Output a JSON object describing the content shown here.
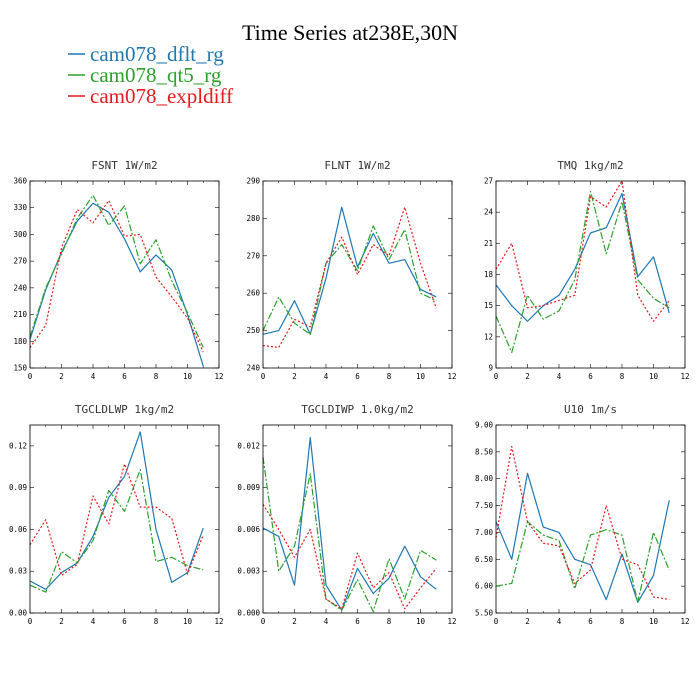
{
  "figure": {
    "title": "Time Series at238E,30N",
    "colors": {
      "dflt": "#1f77b4",
      "qt5": "#2ca02c",
      "expl": "#e41a1c"
    },
    "legend": [
      {
        "name": "cam078_dflt_rg",
        "color": "#1f77b4"
      },
      {
        "name": "cam078_qt5_rg",
        "color": "#2ca02c"
      },
      {
        "name": "cam078_expldiff",
        "color": "#e41a1c"
      }
    ]
  },
  "chart_data": [
    {
      "type": "line",
      "title": "FSNT   1W/m2",
      "x": [
        0,
        1,
        2,
        3,
        4,
        5,
        6,
        7,
        8,
        9,
        10,
        11
      ],
      "xlim": [
        0,
        12
      ],
      "xticks": [
        0,
        2,
        4,
        6,
        8,
        10,
        12
      ],
      "xtick_labels": [
        "0",
        "2",
        "4",
        "6",
        "8",
        "10",
        "12"
      ],
      "ylim": [
        150,
        360
      ],
      "yticks": [
        150,
        180,
        210,
        240,
        270,
        300,
        330,
        360
      ],
      "ytick_labels": [
        "150",
        "180",
        "210",
        "240",
        "270",
        "300",
        "330",
        "360"
      ],
      "series": [
        {
          "name": "cam078_dflt_rg",
          "style": "solid",
          "values": [
            182,
            238,
            280,
            315,
            335,
            325,
            295,
            258,
            277,
            260,
            210,
            152
          ]
        },
        {
          "name": "cam078_qt5_rg",
          "style": "dashed",
          "values": [
            185,
            240,
            278,
            318,
            344,
            310,
            332,
            267,
            294,
            248,
            212,
            173
          ]
        },
        {
          "name": "cam078_expldiff",
          "style": "dotted",
          "values": [
            173,
            198,
            285,
            328,
            313,
            338,
            298,
            300,
            252,
            230,
            206,
            168
          ]
        }
      ]
    },
    {
      "type": "line",
      "title": "FLNT   1W/m2",
      "x": [
        0,
        1,
        2,
        3,
        4,
        5,
        6,
        7,
        8,
        9,
        10,
        11
      ],
      "xlim": [
        0,
        12
      ],
      "xticks": [
        0,
        2,
        4,
        6,
        8,
        10,
        12
      ],
      "xtick_labels": [
        "0",
        "2",
        "4",
        "6",
        "8",
        "10",
        "12"
      ],
      "ylim": [
        240,
        290
      ],
      "yticks": [
        240,
        250,
        260,
        270,
        280,
        290
      ],
      "ytick_labels": [
        "240",
        "250",
        "260",
        "270",
        "280",
        "290"
      ],
      "series": [
        {
          "name": "cam078_dflt_rg",
          "style": "solid",
          "values": [
            249,
            250,
            258,
            249,
            264,
            283,
            267,
            276,
            268,
            269,
            261,
            259
          ]
        },
        {
          "name": "cam078_qt5_rg",
          "style": "dashed",
          "values": [
            250,
            259,
            252,
            249,
            268,
            273,
            266,
            278,
            269,
            277,
            260,
            258
          ]
        },
        {
          "name": "cam078_expldiff",
          "style": "dotted",
          "values": [
            246,
            245.5,
            253,
            251,
            268,
            275,
            265,
            273,
            270,
            283,
            268,
            256
          ]
        }
      ]
    },
    {
      "type": "line",
      "title": "TMQ   1kg/m2",
      "x": [
        0,
        1,
        2,
        3,
        4,
        5,
        6,
        7,
        8,
        9,
        10,
        11
      ],
      "xlim": [
        0,
        12
      ],
      "xticks": [
        0,
        2,
        4,
        6,
        8,
        10,
        12
      ],
      "xtick_labels": [
        "0",
        "2",
        "4",
        "6",
        "8",
        "10",
        "12"
      ],
      "ylim": [
        9,
        27
      ],
      "yticks": [
        9,
        12,
        15,
        18,
        21,
        24,
        27
      ],
      "ytick_labels": [
        "9",
        "12",
        "15",
        "18",
        "21",
        "24",
        "27"
      ],
      "series": [
        {
          "name": "cam078_dflt_rg",
          "style": "solid",
          "values": [
            17,
            15,
            13.5,
            15,
            16,
            18.5,
            22,
            22.5,
            25.8,
            17.8,
            19.7,
            14.3
          ]
        },
        {
          "name": "cam078_qt5_rg",
          "style": "dashed",
          "values": [
            14,
            10.5,
            16,
            13.7,
            14.5,
            17.5,
            26,
            20,
            25,
            17.5,
            15.7,
            14.8
          ]
        },
        {
          "name": "cam078_expldiff",
          "style": "dotted",
          "values": [
            18.5,
            21,
            14.8,
            15,
            15.5,
            16,
            25.5,
            24.5,
            27,
            16,
            13.5,
            15.5
          ]
        }
      ]
    },
    {
      "type": "line",
      "title": "TGCLDLWP   1kg/m2",
      "x": [
        0,
        1,
        2,
        3,
        4,
        5,
        6,
        7,
        8,
        9,
        10,
        11
      ],
      "xlim": [
        0,
        12
      ],
      "xticks": [
        0,
        2,
        4,
        6,
        8,
        10,
        12
      ],
      "xtick_labels": [
        "0",
        "2",
        "4",
        "6",
        "8",
        "10",
        "12"
      ],
      "ylim": [
        0,
        0.135
      ],
      "yticks": [
        0,
        0.03,
        0.06,
        0.09,
        0.12
      ],
      "ytick_labels": [
        "0.00",
        "0.03",
        "0.06",
        "0.09",
        "0.12"
      ],
      "series": [
        {
          "name": "cam078_dflt_rg",
          "style": "solid",
          "values": [
            0.023,
            0.017,
            0.029,
            0.036,
            0.055,
            0.083,
            0.098,
            0.13,
            0.06,
            0.022,
            0.029,
            0.061
          ]
        },
        {
          "name": "cam078_qt5_rg",
          "style": "dashed",
          "values": [
            0.02,
            0.015,
            0.044,
            0.036,
            0.052,
            0.088,
            0.073,
            0.103,
            0.037,
            0.04,
            0.034,
            0.031
          ]
        },
        {
          "name": "cam078_expldiff",
          "style": "dotted",
          "values": [
            0.049,
            0.067,
            0.027,
            0.035,
            0.084,
            0.064,
            0.107,
            0.076,
            0.076,
            0.068,
            0.028,
            0.056
          ]
        }
      ]
    },
    {
      "type": "line",
      "title": "TGCLDIWP   1.0kg/m2",
      "x": [
        0,
        1,
        2,
        3,
        4,
        5,
        6,
        7,
        8,
        9,
        10,
        11
      ],
      "xlim": [
        0,
        12
      ],
      "xticks": [
        0,
        2,
        4,
        6,
        8,
        10,
        12
      ],
      "xtick_labels": [
        "0",
        "2",
        "4",
        "6",
        "8",
        "10",
        "12"
      ],
      "ylim": [
        0,
        0.0135
      ],
      "yticks": [
        0,
        0.003,
        0.006,
        0.009,
        0.012
      ],
      "ytick_labels": [
        "0.000",
        "0.003",
        "0.006",
        "0.009",
        "0.012"
      ],
      "series": [
        {
          "name": "cam078_dflt_rg",
          "style": "solid",
          "values": [
            0.0061,
            0.0055,
            0.002,
            0.0126,
            0.002,
            0.0002,
            0.0032,
            0.0014,
            0.0025,
            0.0048,
            0.0026,
            0.0017
          ]
        },
        {
          "name": "cam078_qt5_rg",
          "style": "dashed",
          "values": [
            0.0112,
            0.003,
            0.0048,
            0.01,
            0.001,
            0.0002,
            0.0024,
            0.0001,
            0.0039,
            0.001,
            0.0045,
            0.0038
          ]
        },
        {
          "name": "cam078_expldiff",
          "style": "dotted",
          "values": [
            0.0078,
            0.006,
            0.004,
            0.006,
            0.001,
            0.0003,
            0.0043,
            0.0018,
            0.0029,
            0.0003,
            0.0018,
            0.0032
          ]
        }
      ]
    },
    {
      "type": "line",
      "title": "U10   1m/s",
      "x": [
        0,
        1,
        2,
        3,
        4,
        5,
        6,
        7,
        8,
        9,
        10,
        11
      ],
      "xlim": [
        0,
        12
      ],
      "xticks": [
        0,
        2,
        4,
        6,
        8,
        10,
        12
      ],
      "xtick_labels": [
        "0",
        "2",
        "4",
        "6",
        "8",
        "10",
        "12"
      ],
      "ylim": [
        5.5,
        9.0
      ],
      "yticks": [
        5.5,
        6.0,
        6.5,
        7.0,
        7.5,
        8.0,
        8.5,
        9.0
      ],
      "ytick_labels": [
        "5.50",
        "6.00",
        "6.50",
        "7.00",
        "7.50",
        "8.00",
        "8.50",
        "9.00"
      ],
      "series": [
        {
          "name": "cam078_dflt_rg",
          "style": "solid",
          "values": [
            7.2,
            6.5,
            8.1,
            7.1,
            7.0,
            6.5,
            6.4,
            5.75,
            6.6,
            5.7,
            6.2,
            7.6
          ]
        },
        {
          "name": "cam078_qt5_rg",
          "style": "dashed",
          "values": [
            6.0,
            6.05,
            7.2,
            6.95,
            6.85,
            5.95,
            6.95,
            7.05,
            6.95,
            5.7,
            7.0,
            6.3
          ]
        },
        {
          "name": "cam078_expldiff",
          "style": "dotted",
          "values": [
            6.9,
            8.6,
            7.2,
            6.8,
            6.75,
            6.05,
            6.3,
            7.5,
            6.5,
            6.4,
            5.8,
            5.75
          ]
        }
      ]
    }
  ]
}
